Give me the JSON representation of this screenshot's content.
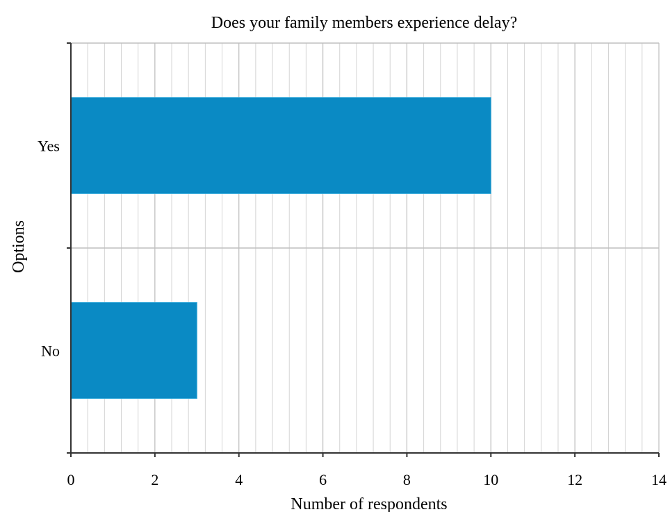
{
  "chart_data": {
    "type": "bar",
    "orientation": "horizontal",
    "title": "Does your family members experience delay?",
    "xlabel": "Number of respondents",
    "ylabel": "Options",
    "categories": [
      "Yes",
      "No"
    ],
    "values": [
      10,
      3
    ],
    "xlim": [
      0,
      14
    ],
    "xticks": [
      "0",
      "2",
      "4",
      "6",
      "8",
      "10",
      "12",
      "14"
    ],
    "minor_grid_step": 0.4,
    "grid": true,
    "legend": "none",
    "colors": {
      "bar": "#0a8ac4",
      "bar_stroke": "#2aa3d6",
      "grid": "#d4d4d4",
      "major_grid": "#bfbfbf",
      "axis": "#333333"
    }
  }
}
